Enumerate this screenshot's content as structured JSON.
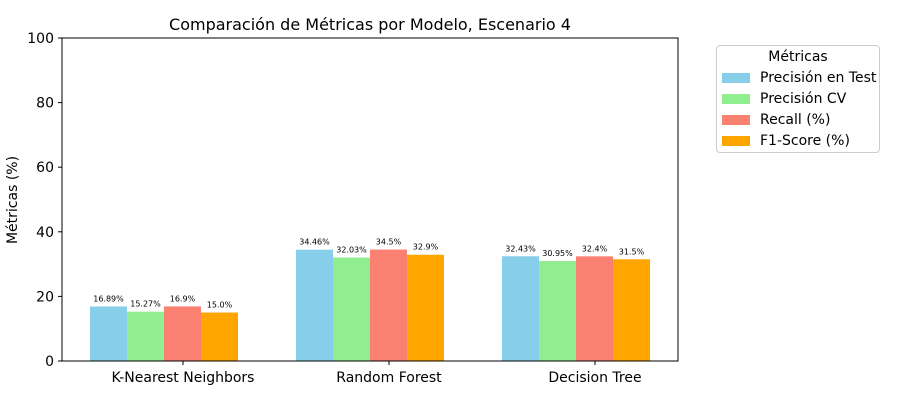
{
  "chart_data": {
    "type": "bar",
    "title": "Comparación de Métricas por Modelo, Escenario 4",
    "xlabel": "",
    "ylabel": "Métricas (%)",
    "ylim": [
      0,
      100
    ],
    "yticks": [
      0,
      20,
      40,
      60,
      80,
      100
    ],
    "categories": [
      "K-Nearest Neighbors",
      "Random Forest",
      "Decision Tree"
    ],
    "series": [
      {
        "name": "Precisión en Test",
        "color": "#87CEEB",
        "values": [
          16.89,
          34.46,
          32.43
        ],
        "labels": [
          "16.89%",
          "34.46%",
          "32.43%"
        ]
      },
      {
        "name": "Precisión CV",
        "color": "#90EE90",
        "values": [
          15.27,
          32.03,
          30.95
        ],
        "labels": [
          "15.27%",
          "32.03%",
          "30.95%"
        ]
      },
      {
        "name": "Recall (%)",
        "color": "#FA8072",
        "values": [
          16.9,
          34.5,
          32.4
        ],
        "labels": [
          "16.9%",
          "34.5%",
          "32.4%"
        ]
      },
      {
        "name": "F1-Score (%)",
        "color": "#FFA500",
        "values": [
          15.0,
          32.9,
          31.5
        ],
        "labels": [
          "15.0%",
          "32.9%",
          "31.5%"
        ]
      }
    ],
    "legend": {
      "title": "Métricas",
      "placement": "outside-top-right"
    },
    "grid": false
  }
}
